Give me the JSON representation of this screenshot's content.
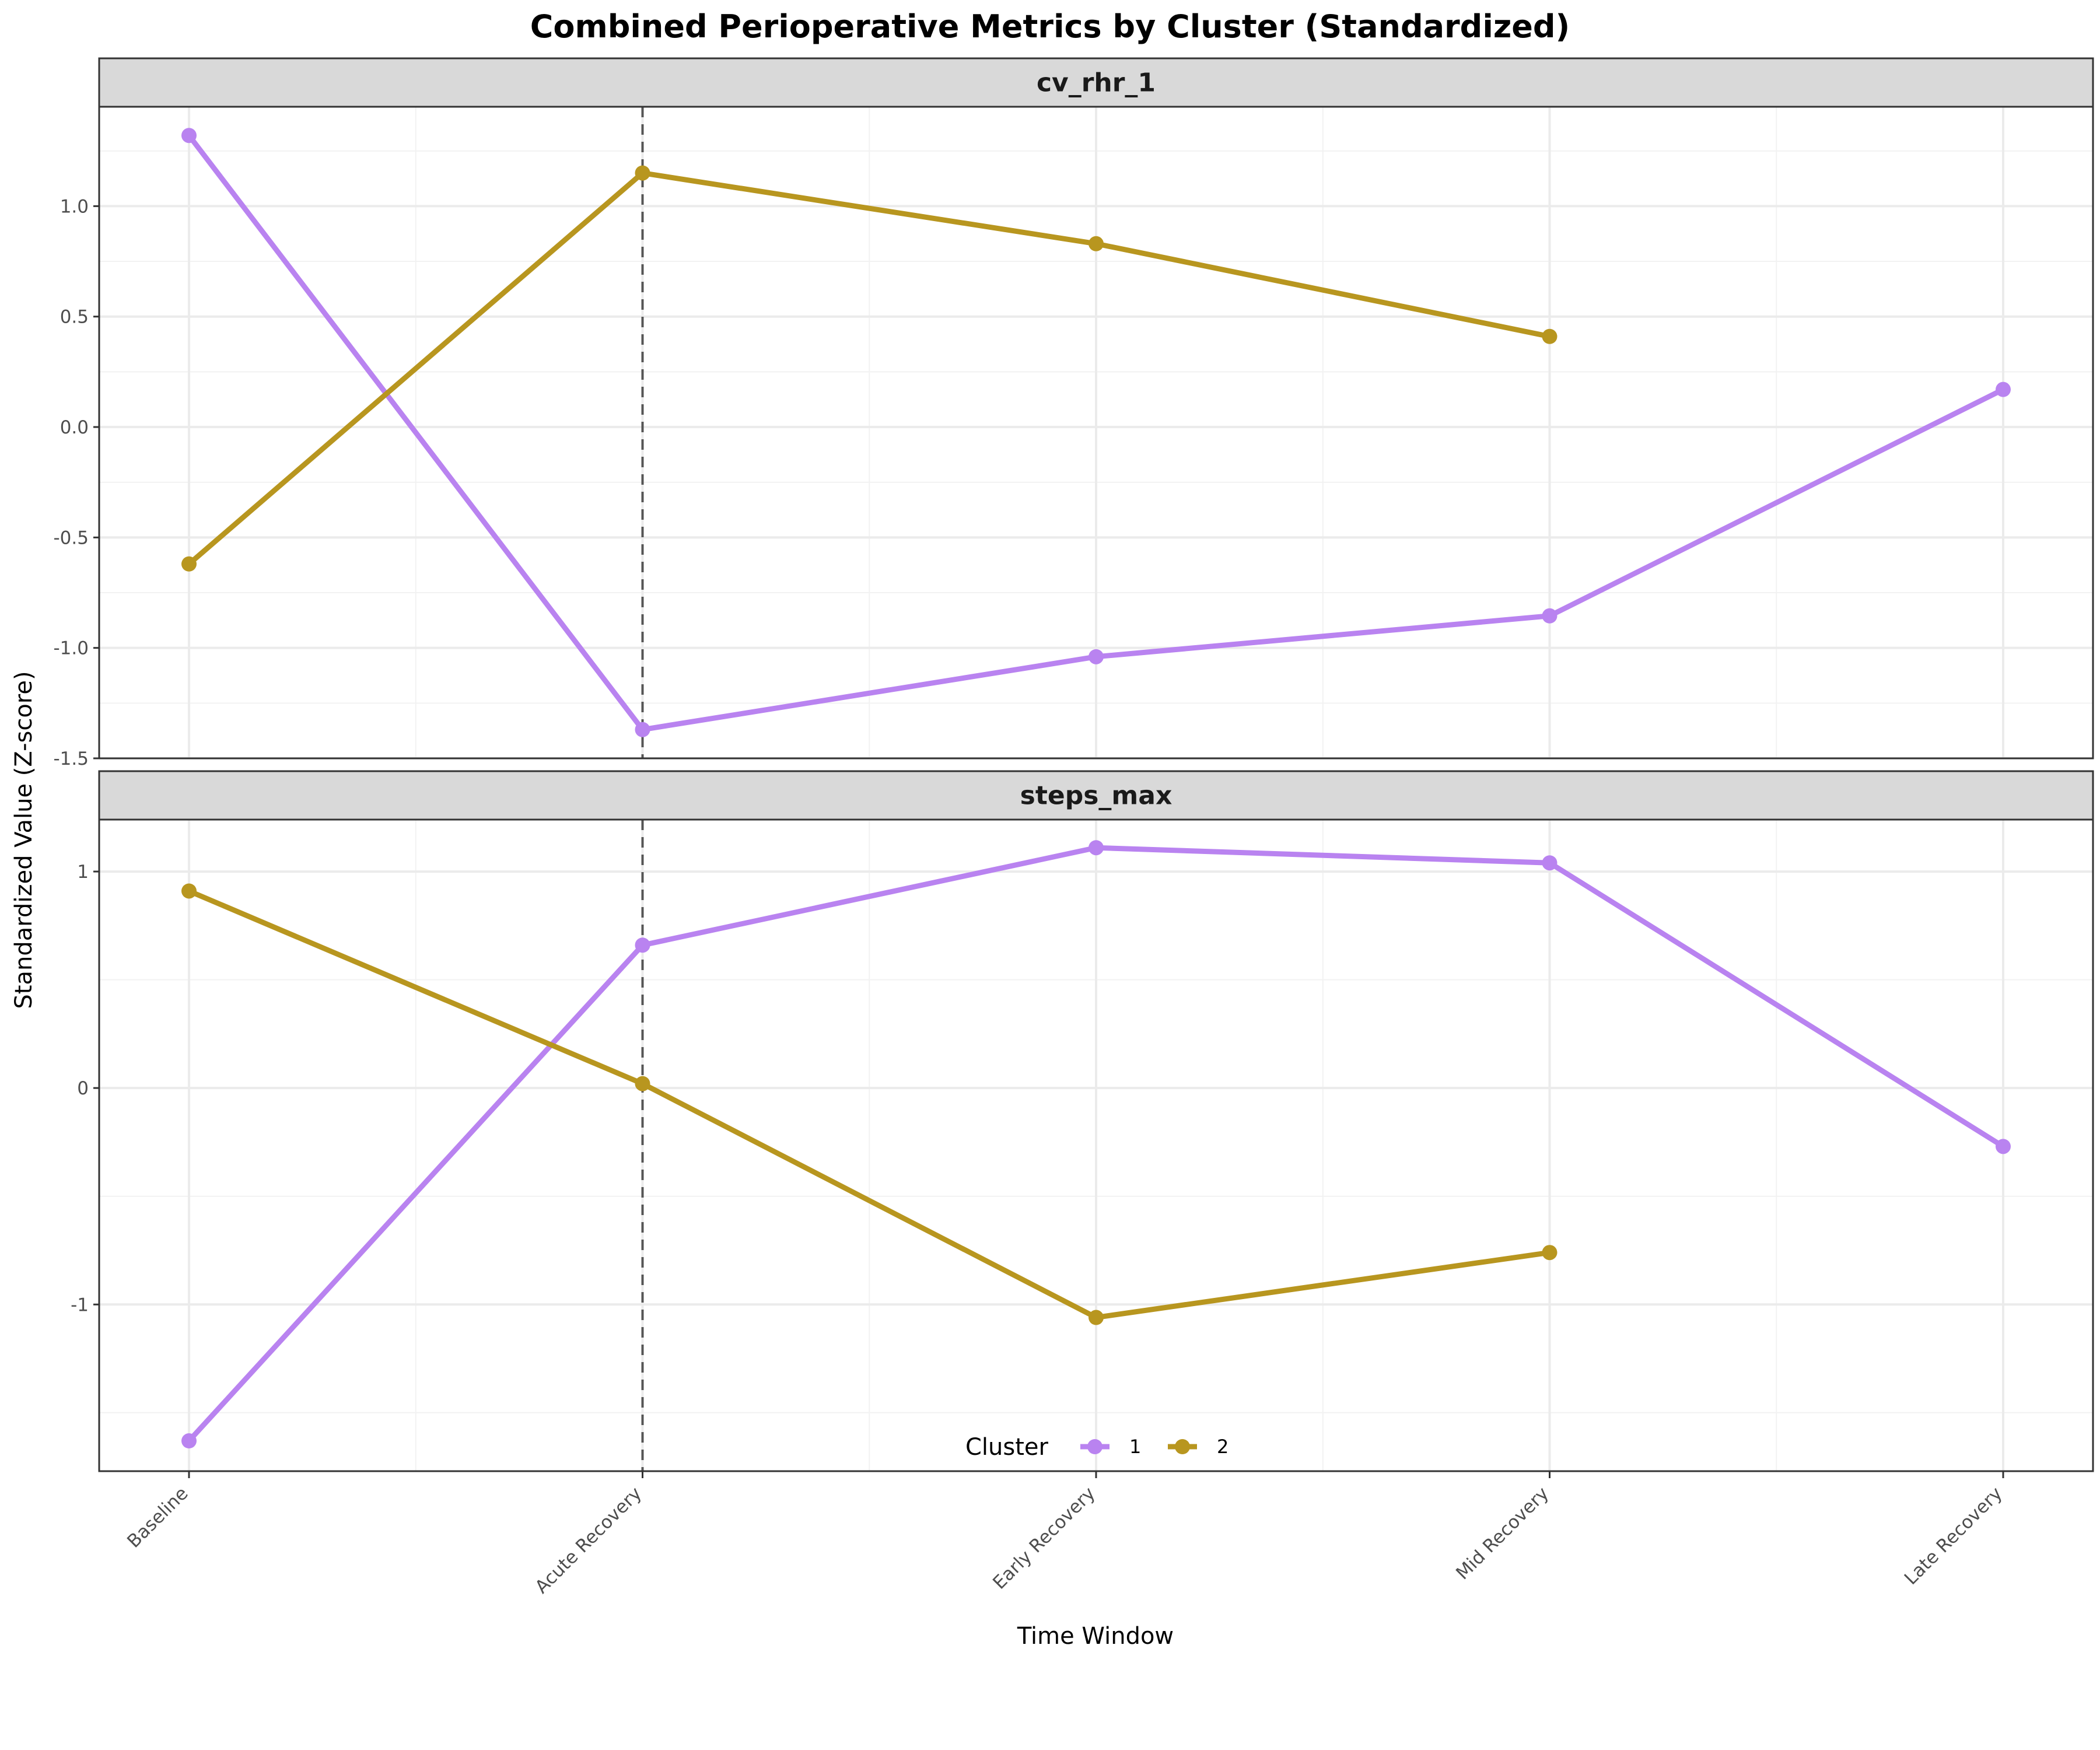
{
  "chart_data": {
    "type": "line",
    "title": "Combined Perioperative Metrics by Cluster (Standardized)",
    "xlabel": "Time Window",
    "ylabel": "Standardized Value (Z-score)",
    "categories": [
      "Baseline",
      "Acute Recovery",
      "Early Recovery",
      "Mid Recovery",
      "Late Recovery"
    ],
    "reference_line": {
      "category": "Acute Recovery",
      "style": "dashed"
    },
    "legend": {
      "title": "Cluster",
      "position": "bottom",
      "entries": [
        "1",
        "2"
      ]
    },
    "colors": {
      "1": "#b983f0",
      "2": "#b8961f"
    },
    "grid": true,
    "panels": [
      {
        "title": "cv_rhr_1",
        "ylim": [
          -1.5,
          1.45
        ],
        "yticks": [
          -1.5,
          -1.0,
          -0.5,
          0.0,
          0.5,
          1.0
        ],
        "ytick_labels": [
          "-1.5",
          "-1.0",
          "-0.5",
          "0.0",
          "0.5",
          "1.0"
        ],
        "series": [
          {
            "name": "1",
            "values": [
              1.32,
              -1.37,
              -1.04,
              -0.855,
              0.17
            ]
          },
          {
            "name": "2",
            "values": [
              -0.62,
              1.15,
              0.83,
              0.41,
              null
            ]
          }
        ]
      },
      {
        "title": "steps_max",
        "ylim": [
          -1.77,
          1.24
        ],
        "yticks": [
          -1,
          0,
          1
        ],
        "ytick_labels": [
          "-1",
          "0",
          "1"
        ],
        "series": [
          {
            "name": "1",
            "values": [
              -1.63,
              0.66,
              1.11,
              1.04,
              -0.27
            ]
          },
          {
            "name": "2",
            "values": [
              0.91,
              0.02,
              -1.06,
              -0.76,
              null
            ]
          }
        ]
      }
    ]
  }
}
